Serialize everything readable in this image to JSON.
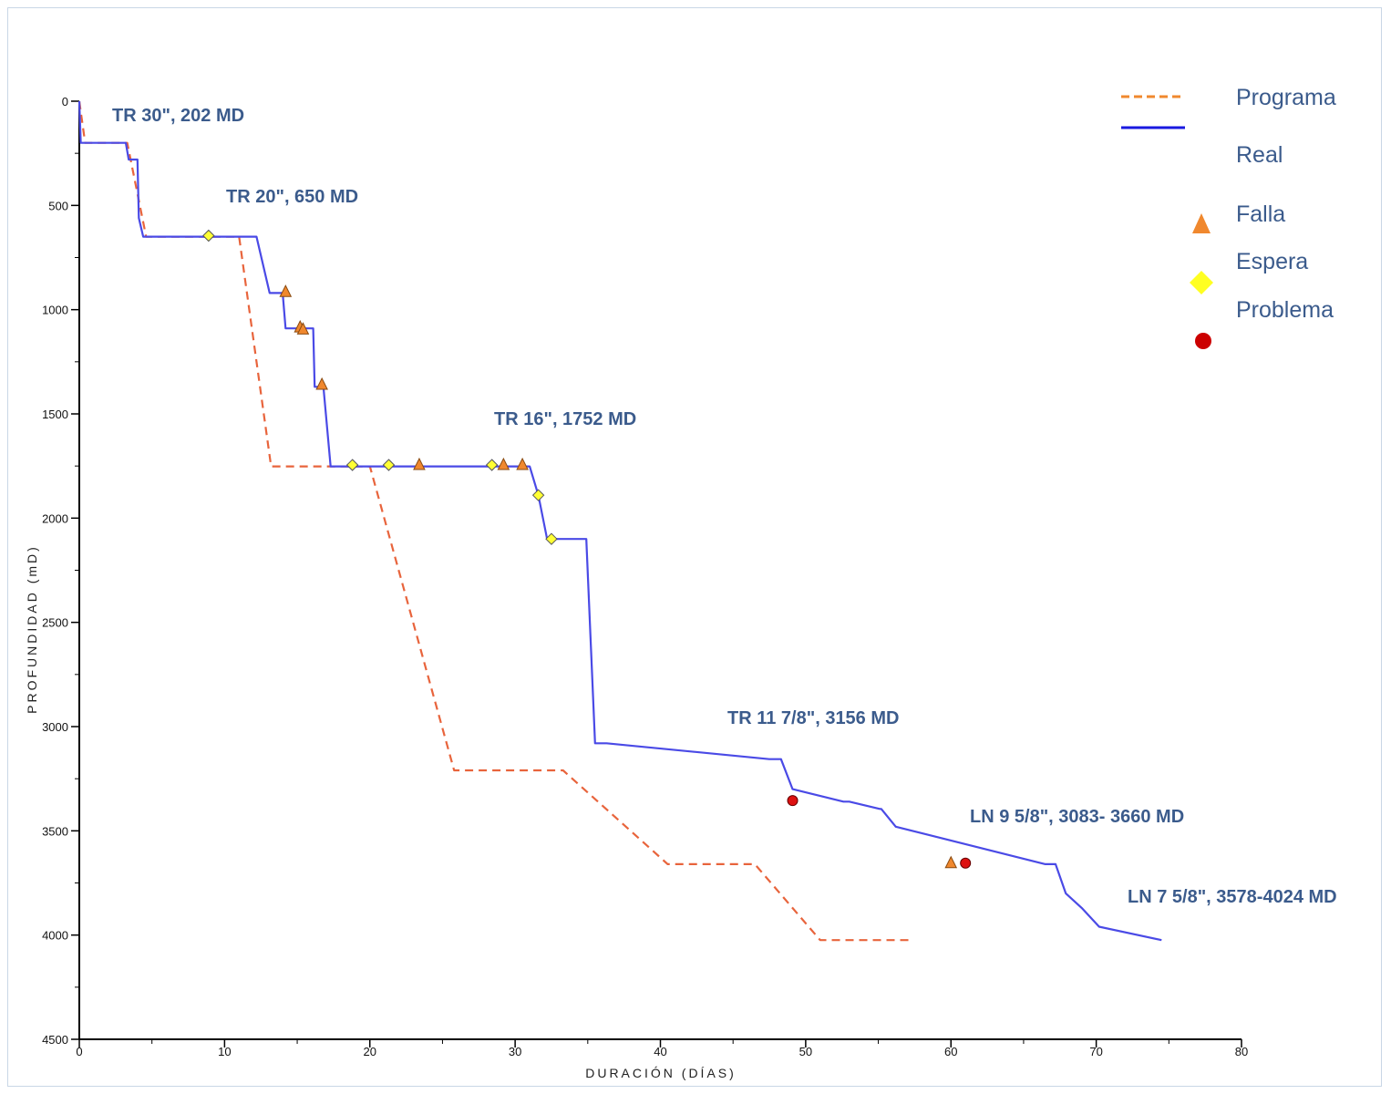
{
  "chart_data": {
    "type": "line",
    "xlabel": "DURACIÓN (DÍAS)",
    "ylabel": "PROFUNDIDAD (mD)",
    "xlim": [
      0,
      80
    ],
    "ylim": [
      0,
      4500
    ],
    "y_inverted": true,
    "x_ticks": [
      0,
      10,
      20,
      30,
      40,
      50,
      60,
      70,
      80
    ],
    "y_ticks": [
      0,
      500,
      1000,
      1500,
      2000,
      2500,
      3000,
      3500,
      4000,
      4500
    ],
    "x_tick_labels": [
      "0",
      "10",
      "20",
      "30",
      "40",
      "50",
      "60",
      "70",
      "80"
    ],
    "y_tick_labels": [
      "0",
      "500",
      "1000",
      "1500",
      "2000",
      "2500",
      "3000",
      "3500",
      "4000",
      "4500"
    ],
    "grid": false,
    "legend_position": "top-right",
    "colors": {
      "programa": "#e8643c",
      "real": "#4a4ae6",
      "falla": "#f0882e",
      "espera": "#ffff33",
      "problema": "#dd1111"
    },
    "series": [
      {
        "name": "Programa",
        "style": "dashed",
        "x": [
          0,
          0.4,
          1.5,
          3.3,
          4.6,
          11.0,
          13.2,
          20.0,
          25.8,
          33.3,
          40.5,
          46.5,
          51.0,
          57.3
        ],
        "y": [
          0,
          200,
          200,
          200,
          650,
          650,
          1752,
          1752,
          3210,
          3210,
          3660,
          3660,
          4024,
          4024
        ]
      },
      {
        "name": "Real",
        "style": "solid",
        "x": [
          0,
          0.1,
          0.4,
          3.2,
          3.4,
          4.0,
          4.1,
          4.4,
          4.6,
          12.2,
          13.1,
          14.0,
          14.2,
          15.0,
          16.1,
          16.2,
          16.8,
          17.3,
          31.0,
          31.6,
          32.2,
          34.9,
          35.5,
          36.3,
          47.5,
          48.3,
          49.1,
          52.6,
          53.0,
          55.1,
          55.2,
          56.2,
          66.5,
          67.2,
          67.9,
          69.0,
          70.2,
          74.5
        ],
        "y": [
          0,
          200,
          200,
          200,
          280,
          280,
          560,
          650,
          650,
          650,
          920,
          920,
          1090,
          1090,
          1090,
          1370,
          1370,
          1752,
          1752,
          1890,
          2100,
          2100,
          3080,
          3080,
          3156,
          3156,
          3300,
          3360,
          3360,
          3395,
          3395,
          3480,
          3660,
          3660,
          3800,
          3870,
          3960,
          4024
        ]
      }
    ],
    "markers": {
      "falla": {
        "name": "Falla",
        "points": [
          [
            14.2,
            915
          ],
          [
            15.2,
            1085
          ],
          [
            15.4,
            1095
          ],
          [
            16.7,
            1360
          ],
          [
            23.4,
            1745
          ],
          [
            29.2,
            1745
          ],
          [
            30.5,
            1745
          ],
          [
            60.0,
            3655
          ]
        ]
      },
      "espera": {
        "name": "Espera",
        "points": [
          [
            8.9,
            645
          ],
          [
            18.8,
            1745
          ],
          [
            21.3,
            1745
          ],
          [
            28.4,
            1745
          ],
          [
            31.6,
            1890
          ],
          [
            32.5,
            2100
          ]
        ]
      },
      "problema": {
        "name": "Problema",
        "points": [
          [
            49.1,
            3355
          ],
          [
            61.0,
            3655
          ]
        ]
      }
    },
    "annotations": [
      {
        "text": "TR 30\", 202 MD"
      },
      {
        "text": "TR 20\", 650 MD"
      },
      {
        "text": "TR 16\", 1752 MD"
      },
      {
        "text": "TR 11 7/8\", 3156 MD"
      },
      {
        "text": "LN 9 5/8\", 3083- 3660 MD"
      },
      {
        "text": "LN 7 5/8\", 3578-4024 MD"
      }
    ],
    "legend": [
      {
        "label": "Programa",
        "kind": "dashed-line"
      },
      {
        "label": "Real",
        "kind": "solid-line"
      },
      {
        "label": "Falla",
        "kind": "triangle"
      },
      {
        "label": "Espera",
        "kind": "diamond"
      },
      {
        "label": "Problema",
        "kind": "circle"
      }
    ]
  }
}
